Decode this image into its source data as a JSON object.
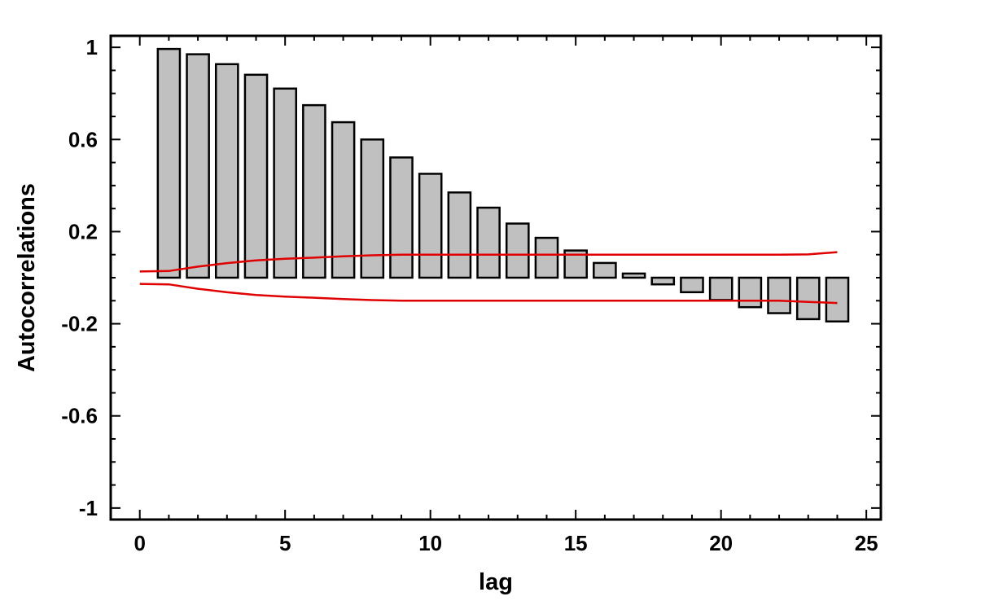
{
  "chart_data": {
    "type": "bar",
    "title": "",
    "xlabel": "lag",
    "ylabel": "Autocorrelations",
    "xlim": [
      -1,
      25.5
    ],
    "ylim": [
      -1.05,
      1.05
    ],
    "x_ticks": [
      0,
      5,
      10,
      15,
      20,
      25
    ],
    "x_tick_labels": [
      "0",
      "5",
      "10",
      "15",
      "20",
      "25"
    ],
    "y_ticks": [
      -1,
      -0.6,
      -0.2,
      0.2,
      0.6,
      1
    ],
    "y_tick_labels": [
      "-1",
      "-0.6",
      "-0.2",
      "0.2",
      "0.6",
      "1"
    ],
    "x_minor_step": 1,
    "y_minor_step": 0.1,
    "grid": false,
    "lags": [
      1,
      2,
      3,
      4,
      5,
      6,
      7,
      8,
      9,
      10,
      11,
      12,
      13,
      14,
      15,
      16,
      17,
      18,
      19,
      20,
      21,
      22,
      23,
      24
    ],
    "values": [
      0.993,
      0.97,
      0.927,
      0.881,
      0.821,
      0.749,
      0.675,
      0.6,
      0.522,
      0.451,
      0.37,
      0.304,
      0.235,
      0.173,
      0.118,
      0.064,
      0.018,
      -0.029,
      -0.063,
      -0.097,
      -0.128,
      -0.154,
      -0.18,
      -0.19
    ],
    "bar_color": "#c0c0c0",
    "bar_edge_color": "#000000",
    "confidence_limits": {
      "color": "#e00000",
      "x": [
        0,
        1,
        2,
        3,
        4,
        5,
        6,
        7,
        8,
        9,
        10,
        11,
        12,
        13,
        14,
        15,
        16,
        17,
        18,
        19,
        20,
        21,
        22,
        23,
        24
      ],
      "upper": [
        0.027,
        0.029,
        0.048,
        0.063,
        0.075,
        0.082,
        0.087,
        0.093,
        0.097,
        0.1,
        0.1,
        0.1,
        0.1,
        0.1,
        0.1,
        0.1,
        0.1,
        0.1,
        0.1,
        0.1,
        0.1,
        0.1,
        0.1,
        0.101,
        0.111
      ],
      "lower": [
        -0.027,
        -0.029,
        -0.048,
        -0.063,
        -0.075,
        -0.082,
        -0.087,
        -0.093,
        -0.097,
        -0.1,
        -0.1,
        -0.1,
        -0.1,
        -0.1,
        -0.1,
        -0.1,
        -0.1,
        -0.1,
        -0.1,
        -0.1,
        -0.1,
        -0.1,
        -0.1,
        -0.105,
        -0.11
      ]
    }
  }
}
